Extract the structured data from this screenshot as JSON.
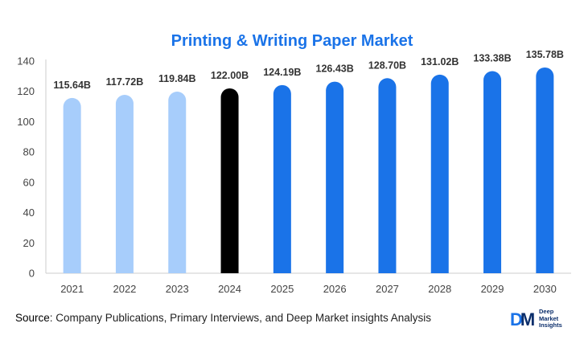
{
  "chart_data": {
    "type": "bar",
    "title": "Printing & Writing Paper Market",
    "categories": [
      "2021",
      "2022",
      "2023",
      "2024",
      "2025",
      "2026",
      "2027",
      "2028",
      "2029",
      "2030"
    ],
    "values": [
      115.64,
      117.72,
      119.84,
      122.0,
      124.19,
      126.43,
      128.7,
      131.02,
      133.38,
      135.78
    ],
    "data_labels": [
      "115.64B",
      "117.72B",
      "119.84B",
      "122.00B",
      "124.19B",
      "126.43B",
      "128.70B",
      "131.02B",
      "133.38B",
      "135.78B"
    ],
    "bar_colors": [
      "#a7cdfb",
      "#a7cdfb",
      "#a7cdfb",
      "#000000",
      "#1a73e8",
      "#1a73e8",
      "#1a73e8",
      "#1a73e8",
      "#1a73e8",
      "#1a73e8"
    ],
    "ylim": [
      0,
      140
    ],
    "yticks": [
      0,
      20,
      40,
      60,
      80,
      100,
      120,
      140
    ],
    "xlabel": "",
    "ylabel": "",
    "grid": false,
    "legend": "none"
  },
  "footer": {
    "source_label": "Source",
    "source_text": ": Company Publications, Primary Interviews, and Deep Market insights Analysis"
  },
  "logo": {
    "mark_d": "D",
    "mark_m": "M",
    "line1": "Deep",
    "line2": "Market",
    "line3": "Insights"
  },
  "colors": {
    "title": "#1a73e8",
    "historical": "#a7cdfb",
    "base_year": "#000000",
    "forecast": "#1a73e8"
  }
}
